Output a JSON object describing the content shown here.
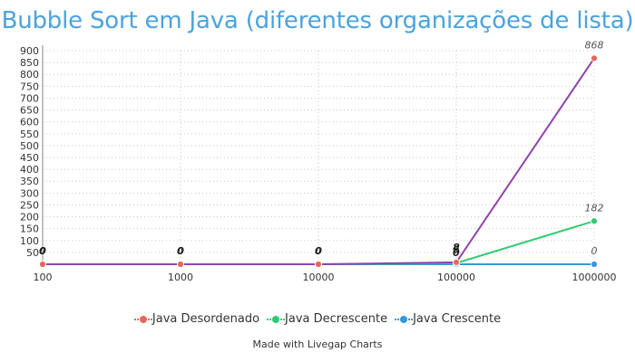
{
  "chart_data": {
    "type": "line",
    "title": "Bubble Sort em Java (diferentes organizações de lista)",
    "xlabel": "",
    "ylabel": "",
    "categories": [
      "100",
      "1000",
      "10000",
      "100000",
      "1000000"
    ],
    "yticks": [
      50,
      100,
      150,
      200,
      250,
      300,
      350,
      400,
      450,
      500,
      550,
      600,
      650,
      700,
      750,
      800,
      850,
      900
    ],
    "ylim": [
      0,
      900
    ],
    "grid": true,
    "legend_position": "bottom",
    "series": [
      {
        "name": "Java Desordenado",
        "color": "#e8675b",
        "line_color": "#8e44ad",
        "values": [
          0,
          0,
          0,
          8,
          868
        ],
        "labels": [
          "0",
          "0",
          "0",
          "8",
          "868"
        ]
      },
      {
        "name": "Java Decrescente",
        "color": "#2ecc71",
        "line_color": "#2ecc71",
        "values": [
          0,
          0,
          0,
          5,
          182
        ],
        "labels": [
          "0",
          "0",
          "0",
          "5",
          "182"
        ]
      },
      {
        "name": "Java Crescente",
        "color": "#3498db",
        "line_color": "#3498db",
        "values": [
          0,
          0,
          0,
          0,
          0
        ],
        "labels": [
          "0",
          "0",
          "0",
          "0",
          "0"
        ]
      }
    ]
  },
  "footer": {
    "credit": "Made with Livegap Charts"
  }
}
